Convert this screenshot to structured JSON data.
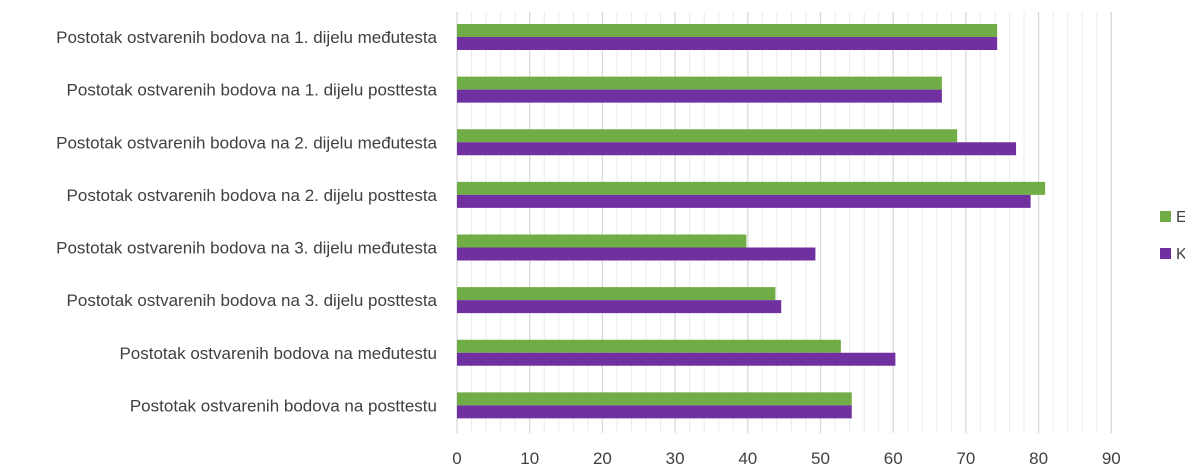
{
  "chart_data": {
    "type": "bar",
    "orientation": "horizontal",
    "title": "",
    "xlabel": "",
    "ylabel": "",
    "xlim": [
      0,
      90
    ],
    "x_ticks": [
      "0",
      "10",
      "20",
      "30",
      "40",
      "50",
      "60",
      "70",
      "80",
      "90"
    ],
    "grid": "vertical",
    "legend_position": "right",
    "categories": [
      "Postotak ostvarenih bodova na 1. dijelu međutesta",
      "Postotak ostvarenih bodova na 1. dijelu posttesta",
      "Postotak ostvarenih bodova na 2. dijelu međutesta",
      "Postotak ostvarenih bodova na 2. dijelu posttesta",
      "Postotak ostvarenih bodova na 3. dijelu međutesta",
      "Postotak ostvarenih bodova na 3. dijelu posttesta",
      "Postotak ostvarenih bodova na međutestu",
      "Postotak ostvarenih bodova na posttestu"
    ],
    "series": [
      {
        "name": "E",
        "color": "#70ad47",
        "values": [
          74.3,
          66.7,
          68.8,
          80.9,
          39.8,
          43.8,
          52.8,
          54.3
        ]
      },
      {
        "name": "K",
        "color": "#7030a0",
        "values": [
          74.3,
          66.7,
          76.9,
          78.9,
          49.3,
          44.6,
          60.3,
          54.3
        ]
      }
    ]
  }
}
